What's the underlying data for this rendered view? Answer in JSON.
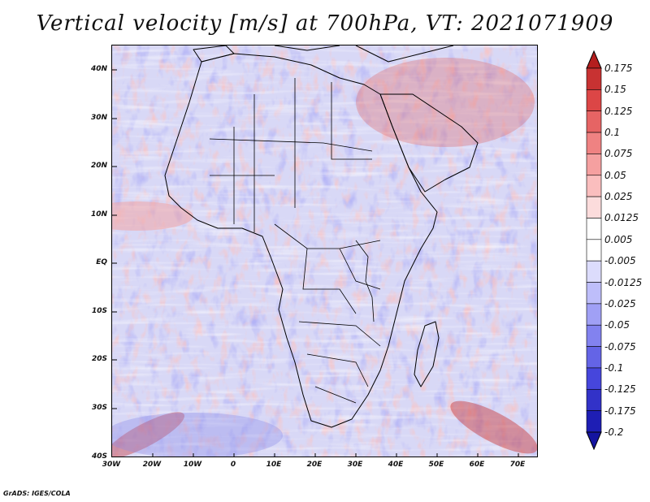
{
  "title": "Vertical velocity [m/s] at 700hPa, VT: 2021071909",
  "footer": "GrADS: IGES/COLA",
  "lat_labels": [
    "40N",
    "30N",
    "20N",
    "10N",
    "EQ",
    "10S",
    "20S",
    "30S",
    "40S"
  ],
  "lon_labels": [
    "30W",
    "20W",
    "10W",
    "0",
    "10E",
    "20E",
    "30E",
    "40E",
    "50E",
    "60E",
    "70E"
  ],
  "colorbar": {
    "levels": [
      "0.175",
      "0.15",
      "0.125",
      "0.1",
      "0.075",
      "0.05",
      "0.025",
      "0.0125",
      "0.005",
      "-0.005",
      "-0.0125",
      "-0.025",
      "-0.05",
      "-0.075",
      "-0.1",
      "-0.125",
      "-0.175",
      "-0.2"
    ],
    "colors": [
      "#b41e1e",
      "#c83232",
      "#dc4646",
      "#e66464",
      "#ef8282",
      "#f5a0a0",
      "#fabebe",
      "#fcdcdc",
      "#ffffff",
      "#ffffff",
      "#dcdcfc",
      "#bebefa",
      "#a0a0f5",
      "#8282ef",
      "#6464e6",
      "#4646dc",
      "#3232c8",
      "#1e1eb4",
      "#1414a0"
    ]
  },
  "colors": {
    "background": "#ffffff",
    "land_outline": "#000000",
    "field_base": "#dcdcf8"
  }
}
